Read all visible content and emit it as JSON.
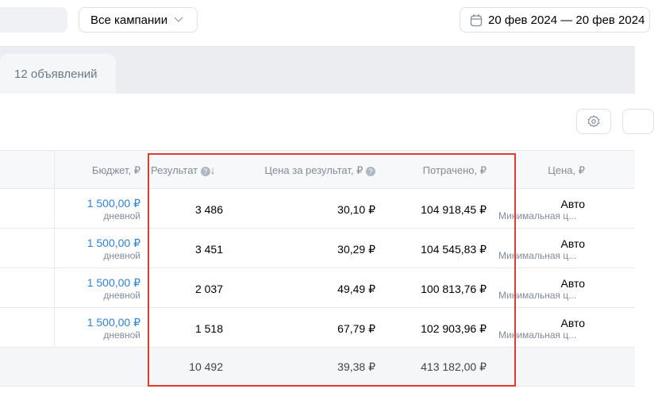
{
  "toolbar": {
    "campaign_filter": "Все кампании",
    "date_range": "20 фев 2024 — 20 фев 2024"
  },
  "tabs": [
    {
      "label": "12 объявлений"
    }
  ],
  "table": {
    "headers": {
      "budget": "Бюджет, ₽",
      "result": "Результат",
      "price_per_result": "Цена за результат, ₽",
      "spent": "Потрачено, ₽",
      "price": "Цена, ₽"
    },
    "sort": "descending",
    "rows": [
      {
        "budget": "1 500,00 ₽",
        "budget_type": "дневной",
        "result": "3 486",
        "price_per_result": "30,10 ₽",
        "spent": "104 918,45 ₽",
        "price": "Авто",
        "price_sub": "Минимальная ц..."
      },
      {
        "budget": "1 500,00 ₽",
        "budget_type": "дневной",
        "result": "3 451",
        "price_per_result": "30,29 ₽",
        "spent": "104 545,83 ₽",
        "price": "Авто",
        "price_sub": "Минимальная ц..."
      },
      {
        "budget": "1 500,00 ₽",
        "budget_type": "дневной",
        "result": "2 037",
        "price_per_result": "49,49 ₽",
        "spent": "100 813,76 ₽",
        "price": "Авто",
        "price_sub": "Минимальная ц..."
      },
      {
        "budget": "1 500,00 ₽",
        "budget_type": "дневной",
        "result": "1 518",
        "price_per_result": "67,79 ₽",
        "spent": "102 903,96 ₽",
        "price": "Авто",
        "price_sub": "Минимальная ц..."
      }
    ],
    "totals": {
      "result": "10 492",
      "price_per_result": "39,38 ₽",
      "spent": "413 182,00 ₽"
    }
  },
  "colors": {
    "highlight": "#e23b2e",
    "link": "#2d81e0"
  }
}
